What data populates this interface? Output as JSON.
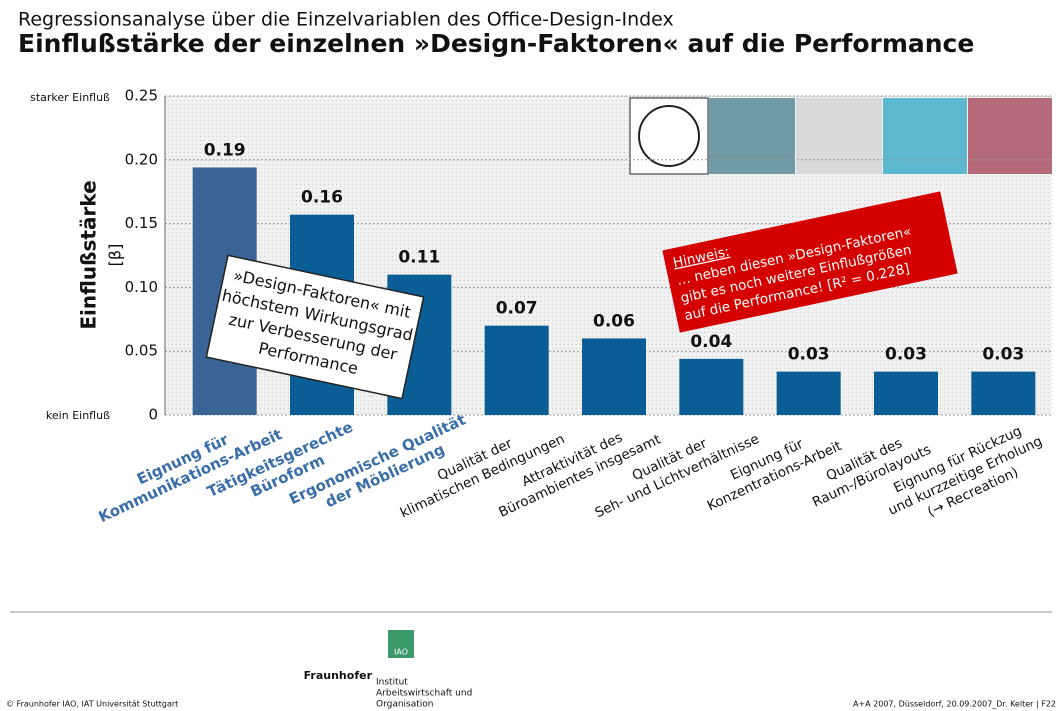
{
  "chart_data": {
    "type": "bar",
    "subtitle": "Regressionsanalyse über die Einzelvariablen des Office-Design-Index",
    "title": "Einflußstärke der einzelnen »Design-Faktoren« auf die Performance",
    "y_label": "Einflußstärke",
    "y_unit": "[β]",
    "y_top_note": "starker Einfluß",
    "y_bottom_note": "kein Einfluß",
    "categories": [
      [
        "Eignung für",
        "Kommunikations-Arbeit"
      ],
      [
        "Tätigkeitsgerechte",
        "Büroform"
      ],
      [
        "Ergonomische Qualität",
        "der Möblierung"
      ],
      [
        "Qualität der",
        "klimatischen Bedingungen"
      ],
      [
        "Attraktivität des",
        "Büroambientes insgesamt"
      ],
      [
        "Qualität der",
        "Seh- und Lichtverhältnisse"
      ],
      [
        "Eignung für",
        "Konzentrations-Arbeit"
      ],
      [
        "Qualität des",
        "Raum-/Bürolayouts"
      ],
      [
        "Eignung für Rückzug",
        "und  kurzzeitige Erholung",
        "(→ Recreation)"
      ]
    ],
    "values": [
      0.194,
      0.157,
      0.11,
      0.07,
      0.06,
      0.044,
      0.034,
      0.034,
      0.034
    ],
    "value_labels": [
      "0.19",
      "0.16",
      "0.11",
      "0.07",
      "0.06",
      "0.04",
      "0.03",
      "0.03",
      "0.03"
    ],
    "colors": [
      "#3a6396",
      "#0b5e95",
      "#0b5e95",
      "#0b5e95",
      "#0b5e95",
      "#0b5e95",
      "#0b5e95",
      "#0b5e95",
      "#0b5e95"
    ],
    "highlight_count": 3,
    "ylim": [
      0,
      0.25
    ],
    "yticks": [
      0,
      0.05,
      {
        "value": 0.1,
        "label": "0.10"
      },
      0.15,
      {
        "value": 0.2,
        "label": "0.20"
      },
      0.25
    ],
    "grid": true,
    "callout": [
      "»Design-Faktoren« mit",
      "höchstem Wirkungsgrad",
      "zur Verbesserung der",
      "Performance"
    ],
    "note": [
      "Hinweis:",
      "… neben diesen »Design-Faktoren«",
      "gibt es noch weitere Einflußgrößen",
      "auf die Performance!  [R² = 0.228]"
    ]
  },
  "footer": {
    "left": "© Fraunhofer IAO, IAT Universität Stuttgart",
    "right": "A+A 2007, Düsseldorf, 20.09.2007_Dr. Kelter   |   F22",
    "logo_badge": "IAO",
    "logo_name": "Fraunhofer",
    "logo_lines": [
      "Institut",
      "Arbeitswirtschaft und",
      "Organisation"
    ]
  }
}
